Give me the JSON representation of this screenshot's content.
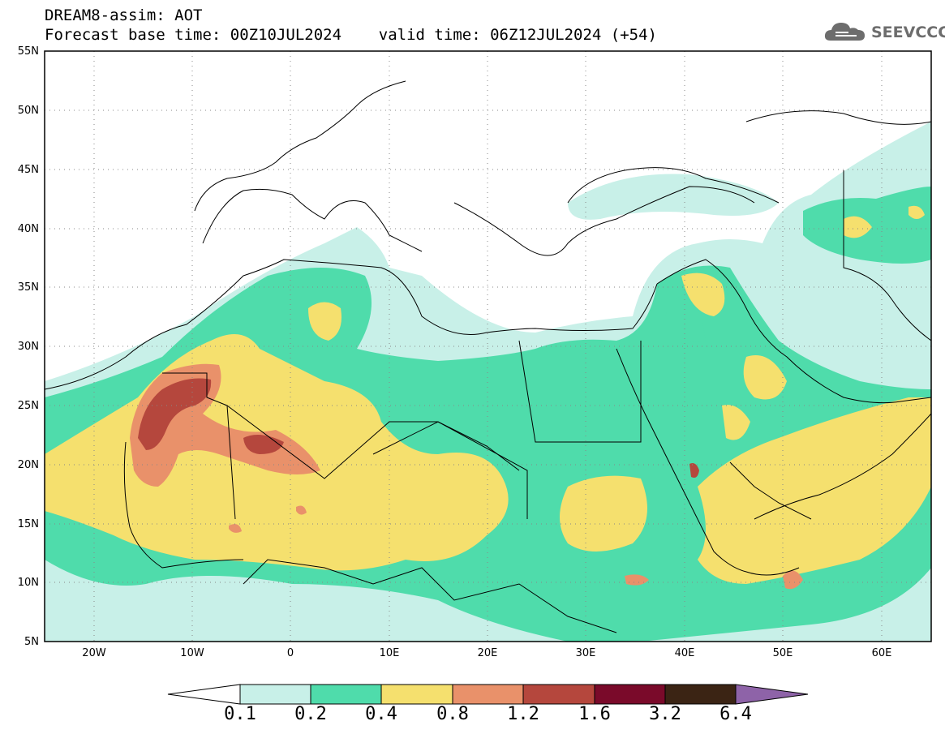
{
  "title": {
    "line1": "DREAM8-assim: AOT",
    "line2": "Forecast base time: 00Z10JUL2024    valid time: 06Z12JUL2024 (+54)"
  },
  "logo": {
    "text": "SEEVCCC",
    "icon": "cloud-icon"
  },
  "map": {
    "lon_range": [
      -25,
      65
    ],
    "lat_range": [
      5,
      55
    ],
    "lat_labels": [
      "55N",
      "50N",
      "45N",
      "40N",
      "35N",
      "30N",
      "25N",
      "20N",
      "15N",
      "10N",
      "5N"
    ],
    "lon_labels": [
      "20W",
      "10W",
      "0",
      "10E",
      "20E",
      "30E",
      "40E",
      "50E",
      "60E"
    ]
  },
  "colorbar": {
    "labels": [
      "0.1",
      "0.2",
      "0.4",
      "0.8",
      "1.2",
      "1.6",
      "3.2",
      "6.4"
    ],
    "colors": [
      "#ffffff",
      "#c8f0e8",
      "#4fdcab",
      "#f5e06e",
      "#e9916a",
      "#b5473d",
      "#7a0a2a",
      "#3b2414",
      "#8e63a8"
    ]
  }
}
